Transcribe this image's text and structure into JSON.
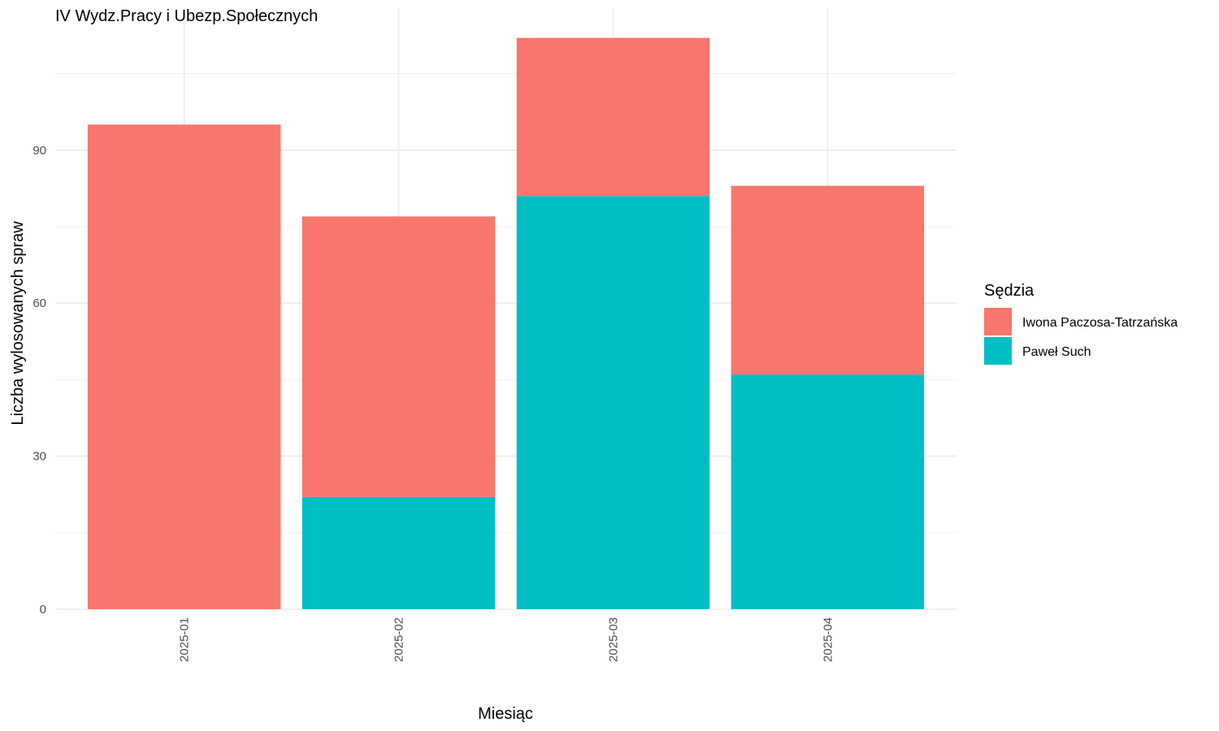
{
  "chart_data": {
    "type": "bar",
    "stacked": true,
    "title": "IV Wydz.Pracy i Ubezp.Społecznych",
    "xlabel": "Miesiąc",
    "ylabel": "Liczba wylosowanych spraw",
    "categories": [
      "2025-01",
      "2025-02",
      "2025-03",
      "2025-04"
    ],
    "series": [
      {
        "name": "Iwona Paczosa-Tatrzańska",
        "color": "#F8766D",
        "values": [
          95,
          55,
          31,
          37
        ]
      },
      {
        "name": "Paweł Such",
        "color": "#00BFC4",
        "values": [
          0,
          22,
          81,
          46
        ]
      }
    ],
    "stack_order_bottom_to_top": [
      "Paweł Such",
      "Iwona Paczosa-Tatrzańska"
    ],
    "y_ticks": [
      0,
      30,
      60,
      90
    ],
    "y_tick_labels": [
      "0",
      "30",
      "60",
      "90"
    ],
    "ylim": [
      0,
      112
    ],
    "x_tick_label_rotation": "vertical",
    "grid": true,
    "legend": {
      "title": "Sędzia",
      "position": "right",
      "entries": [
        "Iwona Paczosa-Tatrzańska",
        "Paweł Such"
      ]
    }
  }
}
